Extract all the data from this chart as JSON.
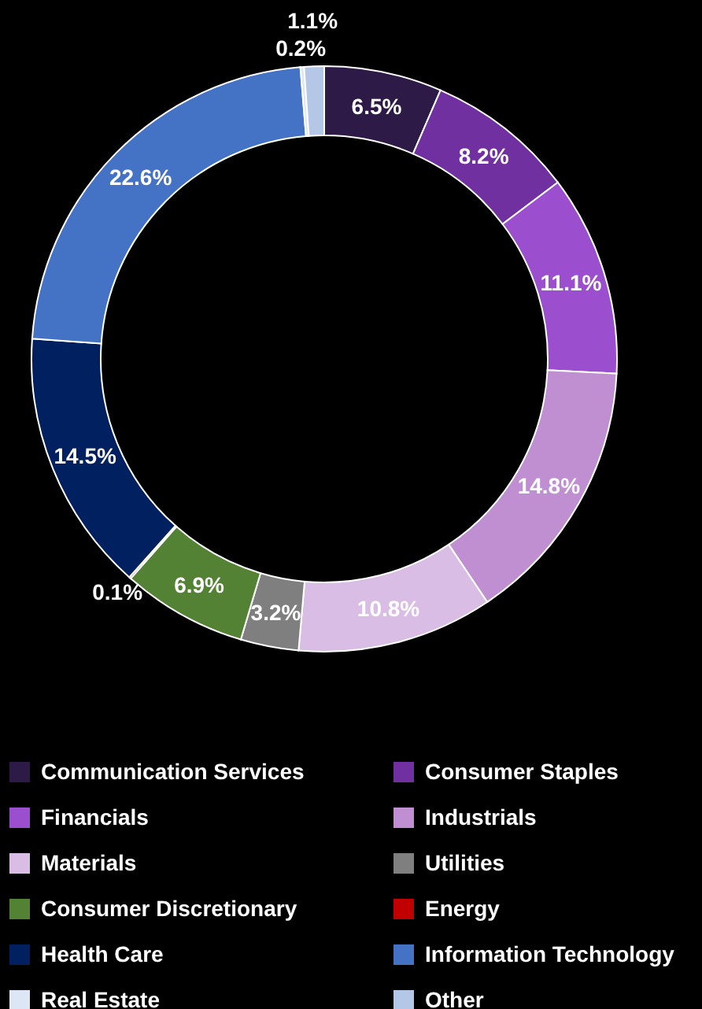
{
  "chart_data": {
    "type": "donut",
    "categories": [
      "Communication Services",
      "Consumer Staples",
      "Financials",
      "Industrials",
      "Materials",
      "Utilities",
      "Consumer Discretionary",
      "Energy",
      "Health Care",
      "Information Technology",
      "Real Estate",
      "Other"
    ],
    "values": [
      6.5,
      8.2,
      11.1,
      14.8,
      10.8,
      3.2,
      6.9,
      0.1,
      14.5,
      22.6,
      0.2,
      1.1
    ],
    "value_labels": [
      "6.5%",
      "8.2%",
      "11.1%",
      "14.8%",
      "10.8%",
      "3.2%",
      "6.9%",
      "0.1%",
      "14.5%",
      "22.6%",
      "0.2%",
      "1.1%"
    ],
    "colors": [
      "#2e1a47",
      "#7030a0",
      "#9b4fcf",
      "#bf8fd2",
      "#d9bde5",
      "#7f7f7f",
      "#548235",
      "#c00000",
      "#002060",
      "#4472c4",
      "#dde6f5",
      "#b4c7e7"
    ],
    "legend": "bottom"
  }
}
